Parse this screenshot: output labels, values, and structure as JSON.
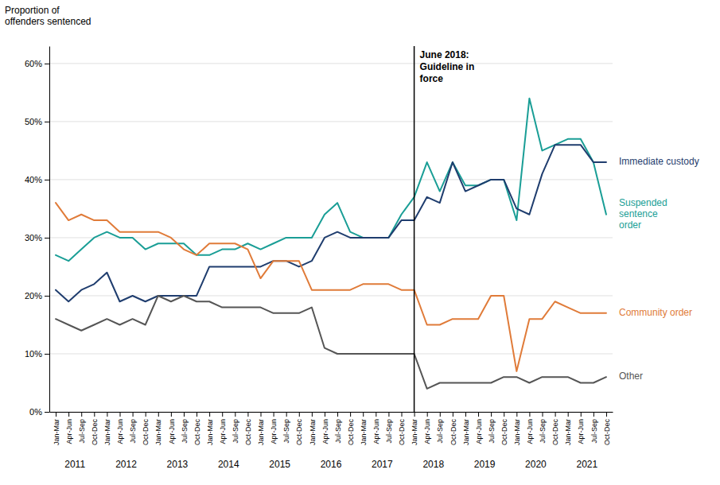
{
  "chart_data": {
    "type": "line",
    "y_label": "Proportion of\noffenders sentenced",
    "categories": [
      "Jan-Mar",
      "Apr-Jun",
      "Jul-Sep",
      "Oct-Dec",
      "Jan-Mar",
      "Apr-Jun",
      "Jul-Sep",
      "Oct-Dec",
      "Jan-Mar",
      "Apr-Jun",
      "Jul-Sep",
      "Oct-Dec",
      "Jan-Mar",
      "Apr-Jun",
      "Jul-Sep",
      "Oct-Dec",
      "Jan-Mar",
      "Apr-Jun",
      "Jul-Sep",
      "Oct-Dec",
      "Jan-Mar",
      "Apr-Jun",
      "Jul-Sep",
      "Oct-Dec",
      "Jan-Mar",
      "Apr-Jun",
      "Jul-Sep",
      "Oct-Dec",
      "Jan-Mar",
      "Apr-Jun",
      "Jul-Sep",
      "Oct-Dec",
      "Jan-Mar",
      "Apr-Jun",
      "Jul-Sep",
      "Oct-Dec",
      "Jan-Mar",
      "Apr-Jun",
      "Jul-Sep",
      "Oct-Dec",
      "Jan-Mar",
      "Apr-Jun",
      "Jul-Sep",
      "Oct-Dec"
    ],
    "category_groups": [
      "2011",
      "2011",
      "2011",
      "2011",
      "2012",
      "2012",
      "2012",
      "2012",
      "2013",
      "2013",
      "2013",
      "2013",
      "2014",
      "2014",
      "2014",
      "2014",
      "2015",
      "2015",
      "2015",
      "2015",
      "2016",
      "2016",
      "2016",
      "2016",
      "2017",
      "2017",
      "2017",
      "2017",
      "2018",
      "2018",
      "2018",
      "2018",
      "2019",
      "2019",
      "2019",
      "2019",
      "2020",
      "2020",
      "2020",
      "2020",
      "2021",
      "2021",
      "2021",
      "2021"
    ],
    "series": [
      {
        "name": "Suspended sentence order",
        "color": "#1a9e96",
        "values": [
          0.27,
          0.26,
          0.28,
          0.3,
          0.31,
          0.3,
          0.3,
          0.28,
          0.29,
          0.29,
          0.29,
          0.27,
          0.27,
          0.28,
          0.28,
          0.29,
          0.28,
          0.29,
          0.3,
          0.3,
          0.3,
          0.34,
          0.36,
          0.31,
          0.3,
          0.3,
          0.3,
          0.34,
          0.37,
          0.43,
          0.38,
          0.43,
          0.39,
          0.39,
          0.4,
          0.4,
          0.33,
          0.54,
          0.45,
          0.46,
          0.47,
          0.47,
          0.43,
          0.34
        ]
      },
      {
        "name": "Immediate custody",
        "color": "#1f3d6e",
        "values": [
          0.21,
          0.19,
          0.21,
          0.22,
          0.24,
          0.19,
          0.2,
          0.19,
          0.2,
          0.2,
          0.2,
          0.2,
          0.25,
          0.25,
          0.25,
          0.25,
          0.25,
          0.26,
          0.26,
          0.25,
          0.26,
          0.3,
          0.31,
          0.3,
          0.3,
          0.3,
          0.3,
          0.33,
          0.33,
          0.37,
          0.36,
          0.43,
          0.38,
          0.39,
          0.4,
          0.4,
          0.35,
          0.34,
          0.41,
          0.46,
          0.46,
          0.46,
          0.43,
          0.43
        ]
      },
      {
        "name": "Community order",
        "color": "#e07b39",
        "values": [
          0.36,
          0.33,
          0.34,
          0.33,
          0.33,
          0.31,
          0.31,
          0.31,
          0.31,
          0.3,
          0.28,
          0.27,
          0.29,
          0.29,
          0.29,
          0.28,
          0.23,
          0.26,
          0.26,
          0.26,
          0.21,
          0.21,
          0.21,
          0.21,
          0.22,
          0.22,
          0.22,
          0.21,
          0.21,
          0.15,
          0.15,
          0.16,
          0.16,
          0.16,
          0.2,
          0.2,
          0.07,
          0.16,
          0.16,
          0.19,
          0.18,
          0.17,
          0.17,
          0.17
        ]
      },
      {
        "name": "Other",
        "color": "#555555",
        "values": [
          0.16,
          0.15,
          0.14,
          0.15,
          0.16,
          0.15,
          0.16,
          0.15,
          0.2,
          0.19,
          0.2,
          0.19,
          0.19,
          0.18,
          0.18,
          0.18,
          0.18,
          0.17,
          0.17,
          0.17,
          0.18,
          0.11,
          0.1,
          0.1,
          0.1,
          0.1,
          0.1,
          0.1,
          0.1,
          0.04,
          0.05,
          0.05,
          0.05,
          0.05,
          0.05,
          0.06,
          0.06,
          0.05,
          0.06,
          0.06,
          0.06,
          0.05,
          0.05,
          0.06
        ]
      }
    ],
    "ylim": [
      0,
      0.63
    ],
    "yticks": [
      {
        "value": 0.0,
        "label": "0%"
      },
      {
        "value": 0.1,
        "label": "10%"
      },
      {
        "value": 0.2,
        "label": "20%"
      },
      {
        "value": 0.3,
        "label": "30%"
      },
      {
        "value": 0.4,
        "label": "40%"
      },
      {
        "value": 0.5,
        "label": "50%"
      },
      {
        "value": 0.6,
        "label": "60%"
      }
    ],
    "grid": true,
    "legend": "right",
    "annotations": [
      {
        "text": "June 2018:\nGuideline in\nforce",
        "category_index": 28
      }
    ]
  }
}
